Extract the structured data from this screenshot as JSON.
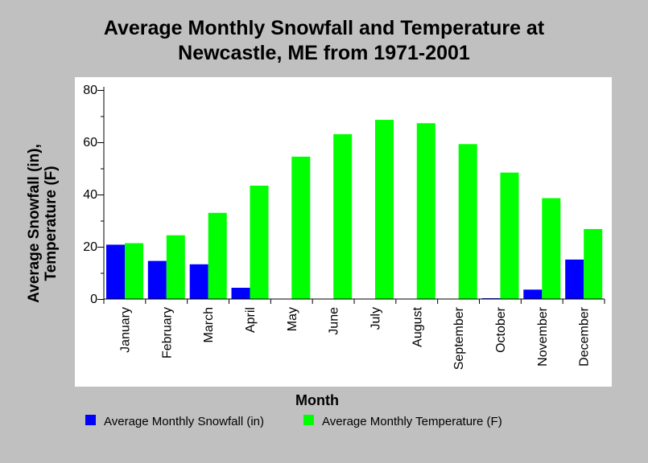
{
  "chart_data": {
    "type": "bar",
    "title_lines": [
      "Average Monthly Snowfall and Temperature at",
      "Newcastle, ME from 1971-2001"
    ],
    "xlabel": "Month",
    "ylabel_lines": [
      "Average Snowfall (in),",
      "Temperature (F)"
    ],
    "categories": [
      "January",
      "February",
      "March",
      "April",
      "May",
      "June",
      "July",
      "August",
      "September",
      "October",
      "November",
      "December"
    ],
    "ylim": [
      0,
      80
    ],
    "yticks": [
      0,
      20,
      40,
      60,
      80
    ],
    "grid": false,
    "legend_position": "bottom",
    "series": [
      {
        "name": "Average Monthly Snowfall (in)",
        "color": "#0000ff",
        "values": [
          20.8,
          14.6,
          13.3,
          4.3,
          0,
          0,
          0,
          0,
          0,
          0.3,
          3.6,
          15.1
        ]
      },
      {
        "name": "Average Monthly Temperature (F)",
        "color": "#00ff00",
        "values": [
          21.4,
          24.4,
          33.0,
          43.4,
          54.5,
          63.1,
          68.6,
          67.3,
          59.3,
          48.4,
          38.6,
          26.8
        ]
      }
    ]
  }
}
